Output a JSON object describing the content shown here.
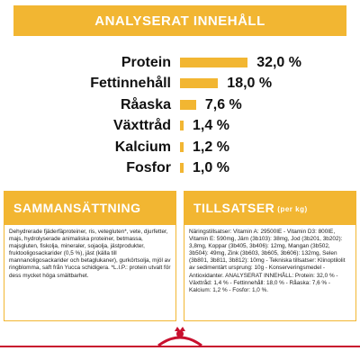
{
  "analysis": {
    "title": "ANALYSERAT INNEHÅLL",
    "rows": [
      {
        "label": "Protein",
        "value": 32.0,
        "value_label": "32,0 %"
      },
      {
        "label": "Fettinnehåll",
        "value": 18.0,
        "value_label": "18,0 %"
      },
      {
        "label": "Råaska",
        "value": 7.6,
        "value_label": "7,6 %"
      },
      {
        "label": "Växttråd",
        "value": 1.4,
        "value_label": "1,4 %"
      },
      {
        "label": "Kalcium",
        "value": 1.2,
        "value_label": "1,2 %"
      },
      {
        "label": "Fosfor",
        "value": 1.0,
        "value_label": "1,0 %"
      }
    ]
  },
  "composition": {
    "title": "SAMMANSÄTTNING",
    "text": "Dehydrerade fjäderfäproteiner, ris, vetegluten*, vete, djurfetter, majs, hydrolyserade animaliska proteiner, betmassa, majsgluten, fiskolja, mineraler, sojaolja, jästprodukter, fruktooligosackarider (0,5 %), jäst (källa till mannanoligosackarider och betaglukaner), gurkörtsolja, mjöl av ringblomma, saft från Yucca schidigera. *L.I.P.: protein utvalt för dess mycket höga smältbarhet."
  },
  "additives": {
    "title": "TILLSATSER",
    "subtitle": "(per kg)",
    "text": "Näringstillsatser: Vitamin A: 29500IE - Vitamin D3: 800IE, Vitamin E: 590mg, Järn (3b103): 38mg, Jod (3b201, 3b202): 3,8mg, Koppar (3b405, 3b406): 12mg, Mangan (3b502, 3b504): 49mg, Zink (3b603, 3b605, 3b606): 132mg, Selen (3b801, 3b811, 3b812): 10mg - Tekniska tillsatser: Klinoptilolit av sedimentärt ursprung: 10g - Konserveringsmedel - Antioxidanter. ANALYSERAT INNEHÅLL: Protein: 32,0 % - Växttråd: 1,4 % - Fettinnehåll: 18,0 % - Råaska: 7,6 % - Kalcium: 1,2 % - Fosfor: 1,0 %."
  }
}
